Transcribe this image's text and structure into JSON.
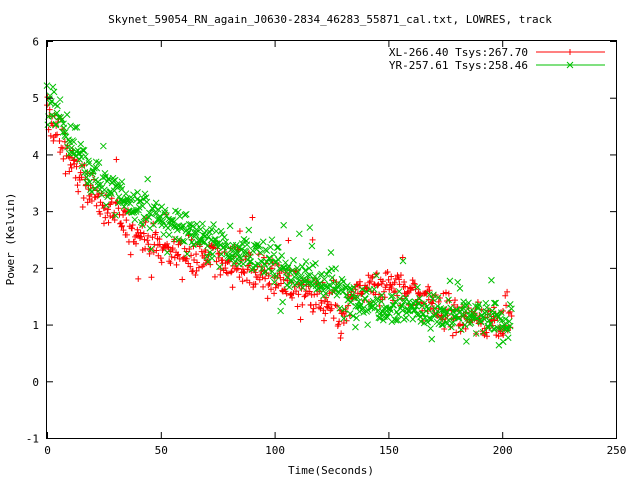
{
  "chart_data": {
    "type": "scatter",
    "title": "Skynet_59054_RN_again_J0630-2834_46283_55871_cal.txt, LOWRES, track",
    "xlabel": "Time(Seconds)",
    "ylabel": "Power (Kelvin)",
    "xlim": [
      0,
      250
    ],
    "ylim": [
      -1,
      6
    ],
    "xticks": [
      "0",
      "50",
      "100",
      "150",
      "200",
      "250"
    ],
    "yticks": [
      "-1",
      "0",
      "1",
      "2",
      "3",
      "4",
      "5",
      "6"
    ],
    "grid": false,
    "legend_position": "top-right",
    "data_x_range": [
      0,
      204
    ],
    "series": [
      {
        "name": "XL-266.40 Tsys:267.70",
        "color": "#ff0000",
        "marker": "plus",
        "trend_x": [
          0,
          5,
          10,
          20,
          30,
          50,
          75,
          100,
          115,
          125,
          130,
          135,
          150,
          160,
          170,
          180,
          190,
          200,
          204
        ],
        "trend_y": [
          4.7,
          4.4,
          3.9,
          3.3,
          2.9,
          2.35,
          2.15,
          1.85,
          1.55,
          1.25,
          1.05,
          1.55,
          1.7,
          1.6,
          1.35,
          1.15,
          1.05,
          1.1,
          1.1
        ]
      },
      {
        "name": "YR-257.61 Tsys:258.46",
        "color": "#00c000",
        "marker": "cross",
        "trend_x": [
          0,
          5,
          10,
          20,
          30,
          50,
          75,
          100,
          115,
          125,
          130,
          135,
          150,
          160,
          170,
          180,
          190,
          200,
          204
        ],
        "trend_y": [
          4.9,
          4.75,
          4.3,
          3.7,
          3.3,
          2.85,
          2.45,
          2.05,
          1.85,
          1.7,
          1.55,
          1.45,
          1.35,
          1.3,
          1.2,
          1.15,
          1.1,
          1.05,
          1.05
        ]
      }
    ]
  }
}
